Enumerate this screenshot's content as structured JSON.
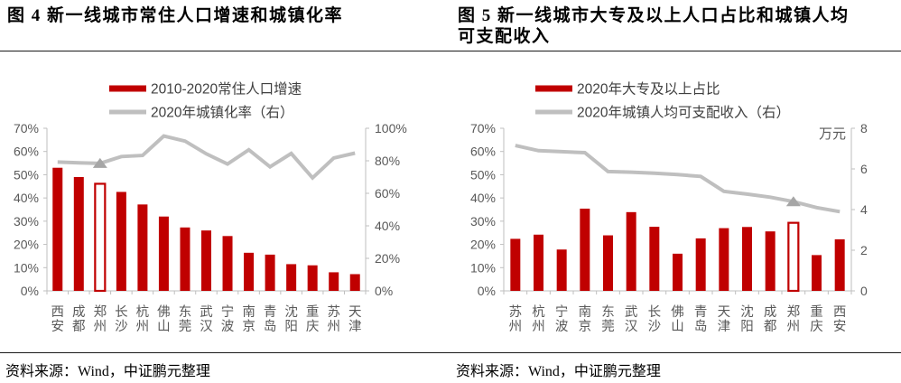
{
  "panels": [
    {
      "title_lines": [
        "图 4  新一线城市常住人口增速和城镇化率"
      ],
      "source": "资料来源：Wind，中证鹏元整理"
    },
    {
      "title_lines": [
        "图 5  新一线城市大专及以上人口占比和城镇人均",
        "可支配收入"
      ],
      "source": "资料来源：Wind，中证鹏元整理"
    }
  ],
  "colors": {
    "bar": "#C00000",
    "line": "#BFBFBF",
    "marker": "#A6A6A6",
    "axis": "#BFBFBF",
    "tick_text": "#595959",
    "legend_text": "#404040",
    "title_text": "#000000"
  },
  "chart_data": [
    {
      "type": "bar-line-combo",
      "title": "图 4 新一线城市常住人口增速和城镇化率",
      "categories": [
        "西安",
        "成都",
        "郑州",
        "长沙",
        "杭州",
        "佛山",
        "东莞",
        "武汉",
        "宁波",
        "南京",
        "青岛",
        "沈阳",
        "重庆",
        "苏州",
        "天津"
      ],
      "series": [
        {
          "name": "2010-2020常住人口增速",
          "type": "bar",
          "axis": "left",
          "values": [
            53.0,
            49.0,
            46.1,
            42.6,
            37.2,
            32.0,
            27.3,
            26.0,
            23.6,
            16.4,
            15.6,
            11.5,
            11.0,
            8.0,
            7.2
          ],
          "highlight_category": "郑州"
        },
        {
          "name": "2020年城镇化率（右）",
          "type": "line",
          "axis": "right",
          "values": [
            79.2,
            78.8,
            78.4,
            82.6,
            83.3,
            95.2,
            92.1,
            84.3,
            78.0,
            86.8,
            76.3,
            84.5,
            69.5,
            81.7,
            84.7
          ],
          "marker_category": "郑州"
        }
      ],
      "left_axis": {
        "min": 0,
        "max": 70,
        "step": 10,
        "suffix": "%"
      },
      "right_axis": {
        "min": 0,
        "max": 100,
        "step": 20,
        "suffix": "%",
        "unit": ""
      },
      "legend_position": "top",
      "grid": false
    },
    {
      "type": "bar-line-combo",
      "title": "图 5 新一线城市大专及以上人口占比和城镇人均可支配收入",
      "categories": [
        "苏州",
        "杭州",
        "宁波",
        "南京",
        "东莞",
        "武汉",
        "长沙",
        "佛山",
        "青岛",
        "天津",
        "沈阳",
        "成都",
        "郑州",
        "重庆",
        "西安"
      ],
      "series": [
        {
          "name": "2020年大专及以上占比",
          "type": "bar",
          "axis": "left",
          "values": [
            22.4,
            24.2,
            17.8,
            35.4,
            23.9,
            33.9,
            27.6,
            16.0,
            22.6,
            27.0,
            27.5,
            25.6,
            29.3,
            15.4,
            22.2
          ],
          "highlight_category": "郑州"
        },
        {
          "name": "2020年城镇人均可支配收入（右）",
          "type": "line",
          "axis": "right",
          "values": [
            7.15,
            6.9,
            6.85,
            6.8,
            5.87,
            5.84,
            5.79,
            5.72,
            5.63,
            4.9,
            4.76,
            4.61,
            4.39,
            4.1,
            3.9
          ],
          "marker_category": "郑州"
        }
      ],
      "left_axis": {
        "min": 0,
        "max": 70,
        "step": 10,
        "suffix": "%"
      },
      "right_axis": {
        "min": 0,
        "max": 8,
        "step": 2,
        "suffix": "",
        "unit": "万元"
      },
      "legend_position": "top",
      "grid": false
    }
  ]
}
